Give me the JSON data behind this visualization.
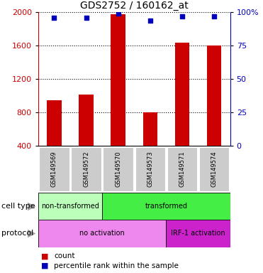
{
  "title": "GDS2752 / 160162_at",
  "samples": [
    "GSM149569",
    "GSM149572",
    "GSM149570",
    "GSM149573",
    "GSM149571",
    "GSM149574"
  ],
  "counts": [
    950,
    1020,
    1980,
    800,
    1640,
    1600
  ],
  "percentile_ranks": [
    96,
    96,
    99,
    94,
    97,
    97
  ],
  "ylim_left": [
    400,
    2000
  ],
  "ylim_right": [
    0,
    100
  ],
  "yticks_left": [
    400,
    800,
    1200,
    1600,
    2000
  ],
  "yticks_right": [
    0,
    25,
    50,
    75,
    100
  ],
  "ytick_right_labels": [
    "0",
    "25",
    "50",
    "75",
    "100%"
  ],
  "bar_color": "#cc0000",
  "dot_color": "#0000bb",
  "bar_width": 0.45,
  "cell_type_groups": [
    {
      "label": "non-transformed",
      "span": [
        0,
        2
      ],
      "color": "#bbffbb"
    },
    {
      "label": "transformed",
      "span": [
        2,
        6
      ],
      "color": "#44ee44"
    }
  ],
  "protocol_groups": [
    {
      "label": "no activation",
      "span": [
        0,
        4
      ],
      "color": "#ee88ee"
    },
    {
      "label": "IRF-1 activation",
      "span": [
        4,
        6
      ],
      "color": "#cc22cc"
    }
  ],
  "sample_box_color": "#cccccc",
  "left_axis_color": "#cc0000",
  "right_axis_color": "#0000bb",
  "background_color": "#ffffff",
  "legend_count_color": "#cc0000",
  "legend_pct_color": "#0000bb"
}
